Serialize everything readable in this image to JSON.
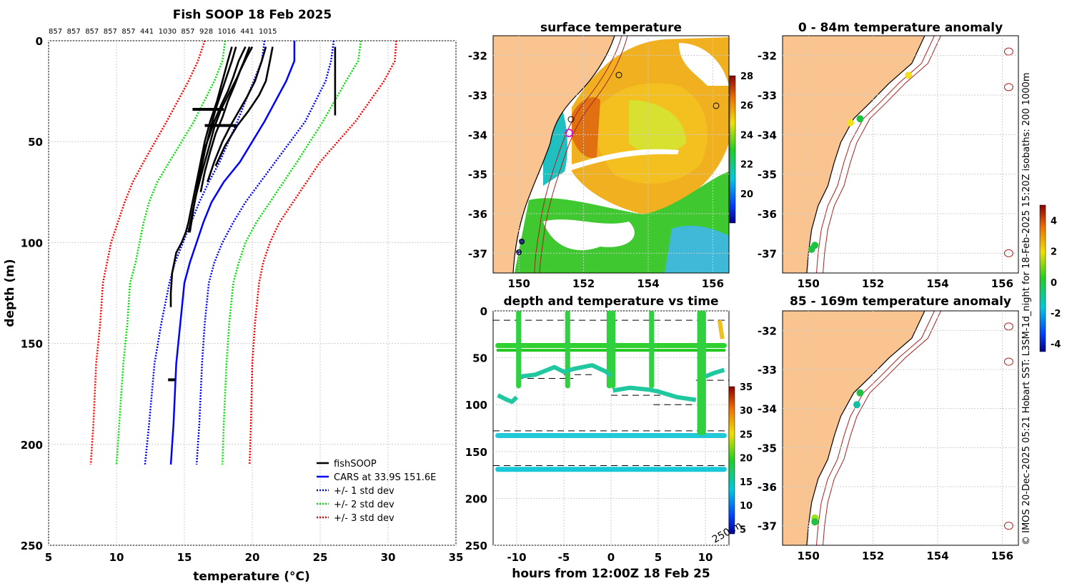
{
  "main_title": "Fish SOOP 18 Feb 2025",
  "top_labels": [
    "857",
    "857",
    "857",
    "857",
    "857",
    "441",
    "1030",
    "857",
    "928",
    "1016",
    "441",
    "1015"
  ],
  "profile": {
    "xlabel": "temperature",
    "xlabel_unit": "(°C)",
    "ylabel": "depth (m)",
    "xticks": [
      5,
      10,
      15,
      20,
      25,
      30,
      35
    ],
    "yticks": [
      0,
      50,
      100,
      150,
      200,
      250
    ],
    "xlim": [
      5,
      35
    ],
    "ylim": [
      0,
      250
    ],
    "legend": [
      {
        "label": "fishSOOP",
        "color": "#000000",
        "style": "solid"
      },
      {
        "label": "CARS at 33.9S 151.6E",
        "color": "#0000ff",
        "style": "solid"
      },
      {
        "label": "+/- 1 std dev",
        "color": "#0000ff",
        "style": "dotted"
      },
      {
        "label": "+/- 2 std dev",
        "color": "#00dd00",
        "style": "dotted"
      },
      {
        "label": "+/- 3 std dev",
        "color": "#ff0000",
        "style": "dotted"
      }
    ]
  },
  "chart_data": [
    {
      "type": "line",
      "title": "Fish SOOP 18 Feb 2025",
      "xlabel": "temperature (°C)",
      "ylabel": "depth (m)",
      "xlim": [
        5,
        35
      ],
      "ylim": [
        250,
        0
      ],
      "series": [
        {
          "name": "CARS at 33.9S 151.6E",
          "color": "#0000ff",
          "style": "solid",
          "x": [
            23.1,
            23.1,
            22.5,
            20.9,
            19.1,
            17.9,
            17.0,
            16.4,
            15.9,
            15.4,
            15.0,
            14.7,
            14.4,
            14.2,
            14.0
          ],
          "y": [
            0,
            10,
            20,
            40,
            60,
            70,
            80,
            90,
            100,
            110,
            120,
            140,
            160,
            190,
            210
          ]
        },
        {
          "name": "+/- 1 std dev (warm)",
          "color": "#0000ff",
          "style": "dotted",
          "x": [
            26.0,
            25.8,
            25.4,
            23.9,
            21.7,
            20.6,
            19.5,
            18.6,
            17.8,
            17.2,
            16.8,
            16.5,
            16.3,
            16.1,
            15.9
          ],
          "y": [
            0,
            10,
            20,
            40,
            60,
            70,
            80,
            90,
            100,
            110,
            120,
            140,
            160,
            190,
            210
          ]
        },
        {
          "name": "+/- 1 std dev (cool)",
          "color": "#0000ff",
          "style": "dotted",
          "x": [
            20.9,
            20.7,
            20.1,
            18.9,
            17.6,
            16.8,
            16.1,
            15.5,
            14.9,
            14.3,
            13.9,
            13.3,
            12.8,
            12.4,
            12.1
          ],
          "y": [
            0,
            10,
            20,
            40,
            60,
            70,
            80,
            90,
            100,
            110,
            120,
            140,
            160,
            190,
            210
          ]
        },
        {
          "name": "+/- 2 std dev (warm)",
          "color": "#00dd00",
          "style": "dotted",
          "x": [
            28.0,
            27.8,
            26.9,
            25.2,
            23.3,
            22.3,
            21.3,
            20.3,
            19.5,
            19.0,
            18.6,
            18.3,
            18.1,
            17.9,
            17.8
          ],
          "y": [
            0,
            10,
            20,
            40,
            60,
            70,
            80,
            90,
            100,
            110,
            120,
            140,
            160,
            190,
            210
          ]
        },
        {
          "name": "+/- 2 std dev (cool)",
          "color": "#00dd00",
          "style": "dotted",
          "x": [
            18.0,
            17.8,
            17.2,
            15.7,
            13.9,
            13.0,
            12.4,
            12.0,
            11.7,
            11.4,
            11.0,
            10.8,
            10.5,
            10.2,
            10.0
          ],
          "y": [
            0,
            10,
            20,
            40,
            60,
            70,
            80,
            90,
            100,
            110,
            120,
            140,
            160,
            190,
            210
          ]
        },
        {
          "name": "+/- 3 std dev (warm)",
          "color": "#ff0000",
          "style": "dotted",
          "x": [
            30.6,
            30.5,
            29.7,
            27.6,
            25.0,
            24.0,
            23.0,
            22.0,
            21.3,
            20.8,
            20.5,
            20.2,
            20.0,
            19.9,
            19.8
          ],
          "y": [
            0,
            10,
            20,
            40,
            60,
            70,
            80,
            90,
            100,
            110,
            120,
            140,
            160,
            190,
            210
          ]
        },
        {
          "name": "+/- 3 std dev (cool)",
          "color": "#ff0000",
          "style": "dotted",
          "x": [
            16.5,
            16.0,
            15.3,
            13.7,
            12.0,
            11.2,
            10.6,
            10.1,
            9.6,
            9.3,
            9.0,
            8.8,
            8.5,
            8.3,
            8.1
          ],
          "y": [
            0,
            10,
            20,
            40,
            60,
            70,
            80,
            90,
            100,
            110,
            120,
            140,
            160,
            190,
            210
          ]
        },
        {
          "name": "fishSOOP",
          "color": "#000000",
          "style": "solid",
          "profiles": [
            {
              "x": [
                18.5,
                18.2,
                17.8,
                17.4,
                16.9,
                16.5,
                16.2,
                15.9,
                15.6,
                15.3,
                15.1,
                14.8,
                14.4,
                14.1,
                14.0,
                14.0
              ],
              "y": [
                3,
                10,
                20,
                30,
                40,
                50,
                60,
                70,
                80,
                90,
                95,
                100,
                105,
                115,
                125,
                132
              ]
            },
            {
              "x": [
                19.5,
                19.0,
                18.6,
                18.2,
                17.7,
                17.2,
                16.8,
                16.4,
                16.1,
                15.9,
                15.6,
                15.3
              ],
              "y": [
                3,
                10,
                18,
                25,
                32,
                40,
                48,
                55,
                65,
                75,
                85,
                95
              ]
            },
            {
              "x": [
                20.0,
                19.6,
                19.1,
                18.7,
                18.2,
                17.8,
                17.3,
                16.9,
                16.5,
                16.2
              ],
              "y": [
                3,
                8,
                15,
                22,
                30,
                38,
                46,
                55,
                65,
                75
              ]
            },
            {
              "x": [
                21.0,
                20.7,
                20.2,
                19.6,
                19.0,
                18.4,
                17.8,
                17.2,
                16.7
              ],
              "y": [
                3,
                10,
                20,
                28,
                35,
                42,
                50,
                60,
                70
              ]
            },
            {
              "x": [
                21.5,
                21.3,
                21.0,
                20.5,
                19.7,
                18.9,
                18.0,
                17.3
              ],
              "y": [
                3,
                10,
                20,
                27,
                35,
                42,
                52,
                62
              ]
            },
            {
              "x": [
                18.8,
                18.5,
                18.1,
                17.7,
                17.3,
                16.9,
                16.5,
                16.1,
                15.7,
                15.4
              ],
              "y": [
                3,
                10,
                18,
                26,
                34,
                44,
                55,
                68,
                82,
                95
              ]
            },
            {
              "x": [
                19.8,
                19.4,
                18.9,
                18.3,
                17.7,
                17.2,
                16.8,
                16.3,
                15.8
              ],
              "y": [
                3,
                10,
                18,
                26,
                34,
                43,
                53,
                65,
                78
              ]
            },
            {
              "x": [
                26.1,
                26.1,
                26.1,
                26.1
              ],
              "y": [
                3,
                12,
                25,
                37
              ]
            }
          ]
        }
      ]
    },
    {
      "type": "heatmap",
      "title": "surface temperature",
      "xlim": [
        149.2,
        156.5
      ],
      "ylim": [
        -37.5,
        -31.5
      ],
      "xticks": [
        150,
        152,
        154,
        156
      ],
      "yticks": [
        -32,
        -33,
        -34,
        -35,
        -36,
        -37
      ],
      "colorbar": {
        "ticks": [
          20,
          22,
          24,
          26,
          28
        ],
        "range": [
          18,
          28
        ]
      }
    },
    {
      "type": "scatter",
      "title": "depth and temperature vs time",
      "xlabel": "hours from 12:00Z 18 Feb 25",
      "xlim": [
        -12.5,
        12.5
      ],
      "ylim": [
        250,
        0
      ],
      "xticks": [
        -10,
        -5,
        0,
        5,
        10
      ],
      "yticks": [
        0,
        50,
        100,
        150,
        200,
        250
      ],
      "colorbar": {
        "ticks": [
          5,
          10,
          15,
          20,
          25,
          30,
          35
        ],
        "range": [
          4,
          35
        ]
      },
      "annotation": "250 m"
    },
    {
      "type": "scatter",
      "title": "0 - 84m temperature anomaly",
      "xlim": [
        149.2,
        156.5
      ],
      "ylim": [
        -37.5,
        -31.5
      ],
      "xticks": [
        150,
        152,
        154,
        156
      ],
      "yticks": [
        -32,
        -33,
        -34,
        -35,
        -36,
        -37
      ],
      "points": [
        {
          "lon": 153.1,
          "lat": -32.5,
          "anom": 2.2
        },
        {
          "lon": 151.3,
          "lat": -33.7,
          "anom": 2.5
        },
        {
          "lon": 151.6,
          "lat": -33.6,
          "anom": 0.3
        },
        {
          "lon": 150.2,
          "lat": -36.8,
          "anom": 0.4
        },
        {
          "lon": 150.1,
          "lat": -36.9,
          "anom": 0.2
        }
      ],
      "colorbar": {
        "ticks": [
          -4,
          -2,
          0,
          2,
          4
        ],
        "range": [
          -4.5,
          5
        ]
      }
    },
    {
      "type": "scatter",
      "title": "85 - 169m temperature anomaly",
      "xlim": [
        149.2,
        156.5
      ],
      "ylim": [
        -37.5,
        -31.5
      ],
      "xticks": [
        150,
        152,
        154,
        156
      ],
      "yticks": [
        -32,
        -33,
        -34,
        -35,
        -36,
        -37
      ],
      "points": [
        {
          "lon": 151.6,
          "lat": -33.6,
          "anom": 0.4
        },
        {
          "lon": 151.5,
          "lat": -33.9,
          "anom": -0.7
        },
        {
          "lon": 150.2,
          "lat": -36.8,
          "anom": 1.5
        },
        {
          "lon": 150.2,
          "lat": -36.9,
          "anom": 0.9
        }
      ]
    }
  ],
  "map": {
    "sst_title": "surface temperature",
    "sst_cbar_ticks": [
      "20",
      "22",
      "24",
      "26",
      "28"
    ],
    "time_title": "depth and temperature vs time",
    "time_xlabel": "hours from 12:00Z 18 Feb 25",
    "time_xticks": [
      "-10",
      "-5",
      "0",
      "5",
      "10"
    ],
    "time_yticks": [
      "0",
      "50",
      "100",
      "150",
      "200",
      "250"
    ],
    "time_cbar_ticks": [
      "5",
      "10",
      "15",
      "20",
      "25",
      "30",
      "35"
    ],
    "time_annotation": "250 m",
    "anom1_title": "0 - 84m temperature anomaly",
    "anom2_title": "85 - 169m temperature anomaly",
    "anom_cbar_ticks": [
      "4",
      "2",
      "0",
      "-2",
      "-4"
    ],
    "lon_ticks": [
      "150",
      "152",
      "154",
      "156"
    ],
    "lat_ticks": [
      "-32",
      "-33",
      "-34",
      "-35",
      "-36",
      "-37"
    ]
  },
  "credit": "© IMOS 20-Dec-2025 05:21 Hobart SST: L3SM-1d_night for 18-Feb-2025 15:20Z isobaths: 200  1000m",
  "colors": {
    "land": "#f9c490",
    "grid": "#cccccc",
    "contour": "#aa2222"
  }
}
